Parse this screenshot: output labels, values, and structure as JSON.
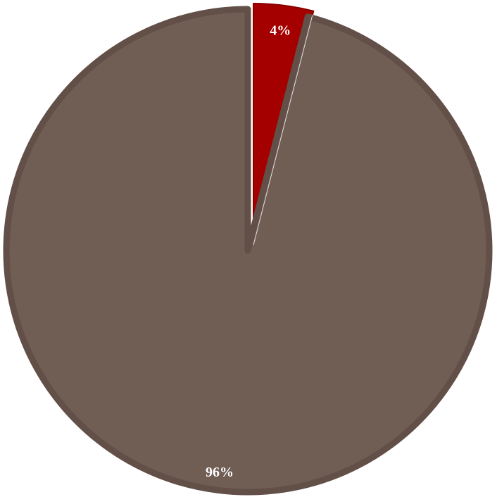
{
  "chart_data": {
    "type": "pie",
    "slices": [
      {
        "value": 4,
        "label": "4%",
        "color": "#a50000"
      },
      {
        "value": 96,
        "label": "96%",
        "color": "#705e55"
      }
    ],
    "legend": "none",
    "border_color": "#624f47"
  }
}
